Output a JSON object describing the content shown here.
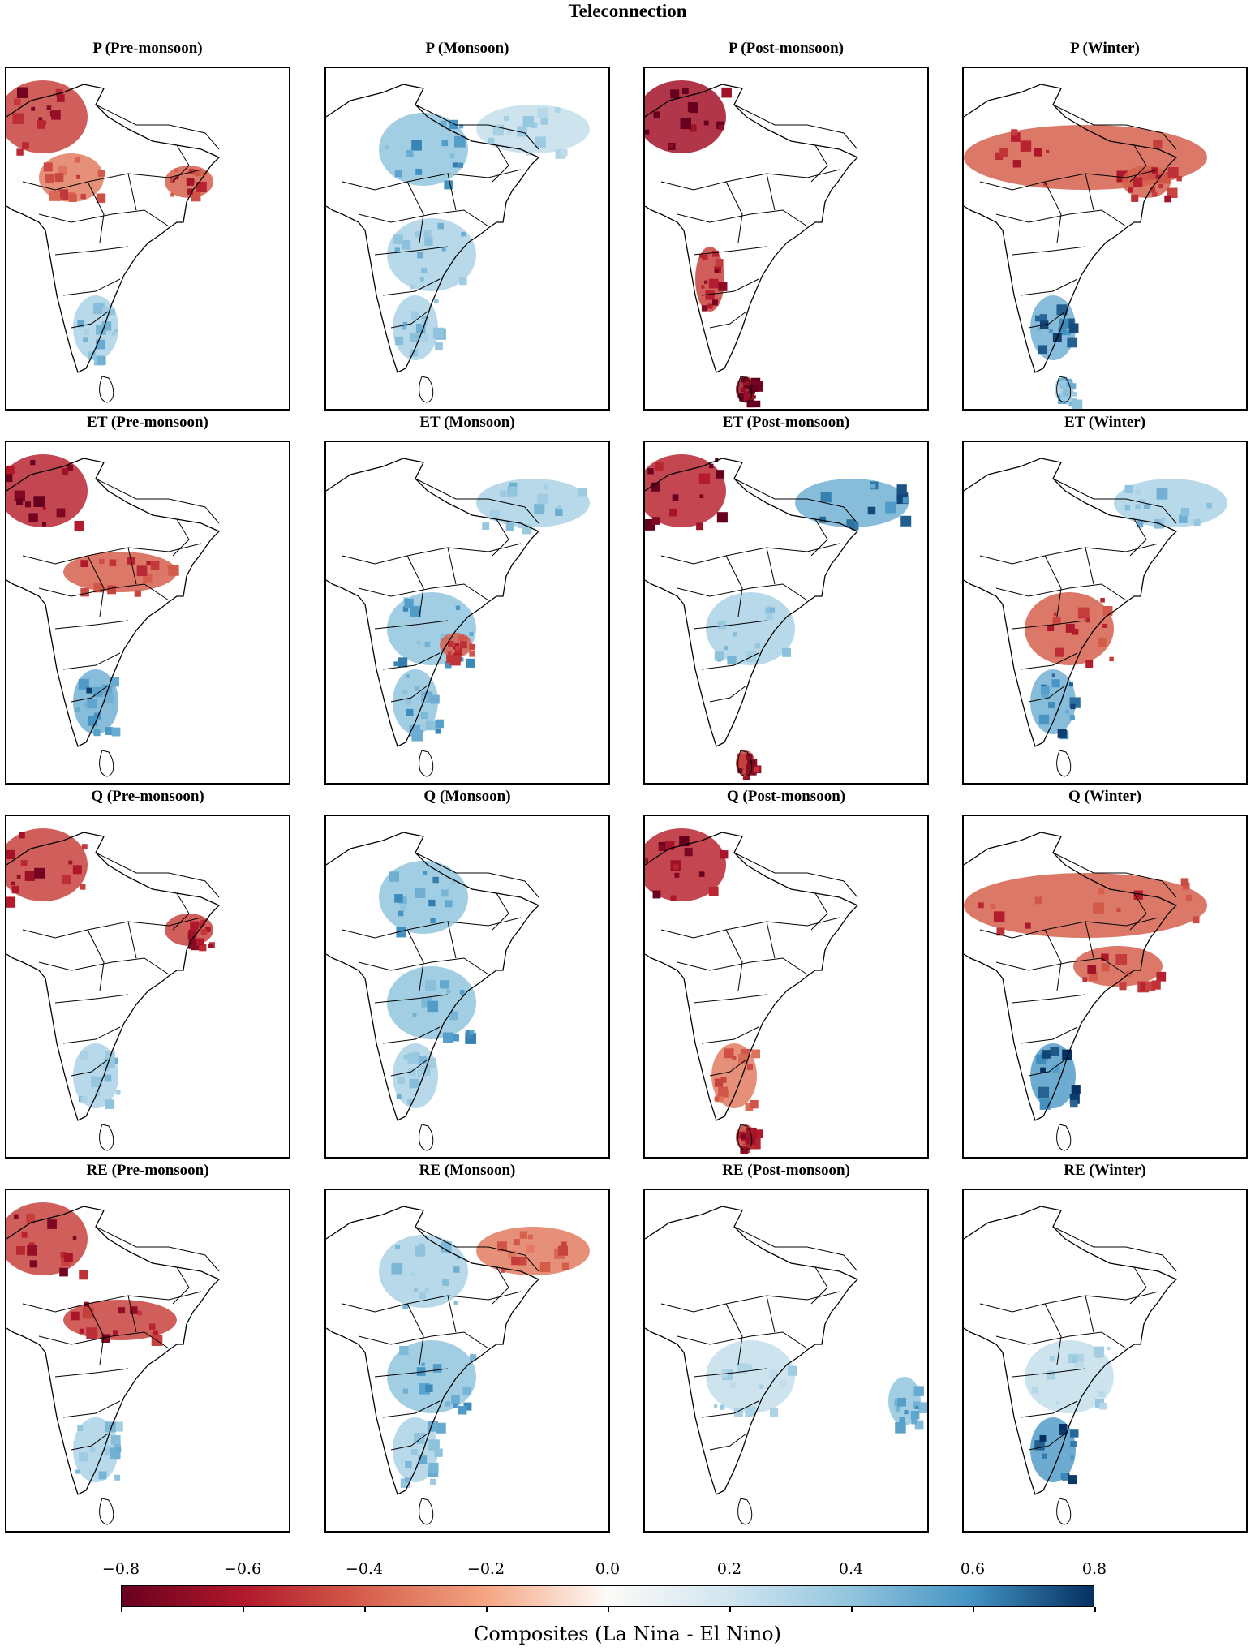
{
  "title": "Teleconnection",
  "colorbar": {
    "label": "Composites (La Nina - El Nino)",
    "ticks": [
      "−0.8",
      "−0.6",
      "−0.4",
      "−0.2",
      "0.0",
      "0.2",
      "0.4",
      "0.6",
      "0.8"
    ],
    "range": [
      -0.8,
      0.8
    ],
    "colors": [
      "#67001f",
      "#b2182b",
      "#d6604d",
      "#f4a582",
      "#fdfbf8",
      "#d1e5f0",
      "#92c5de",
      "#4393c3",
      "#053061"
    ]
  },
  "panels": [
    {
      "title": "P (Pre-monsoon)",
      "variable": "P",
      "season": "Pre-monsoon",
      "dominant": "red",
      "regions": [
        [
          "northwest",
          -0.6
        ],
        [
          "west-central",
          -0.4
        ],
        [
          "northeast",
          -0.5
        ],
        [
          "south-peninsula",
          0.4
        ]
      ]
    },
    {
      "title": "P (Monsoon)",
      "variable": "P",
      "season": "Monsoon",
      "dominant": "blue",
      "regions": [
        [
          "north-central",
          0.5
        ],
        [
          "central",
          0.4
        ],
        [
          "south-peninsula",
          0.4
        ],
        [
          "tibet",
          0.3
        ]
      ]
    },
    {
      "title": "P (Post-monsoon)",
      "variable": "P",
      "season": "Post-monsoon",
      "dominant": "red",
      "regions": [
        [
          "northwest",
          -0.8
        ],
        [
          "west-coast",
          -0.6
        ],
        [
          "sri-lanka",
          -0.8
        ]
      ]
    },
    {
      "title": "P (Winter)",
      "variable": "P",
      "season": "Winter",
      "dominant": "red",
      "regions": [
        [
          "north-band",
          -0.5
        ],
        [
          "northeast",
          -0.5
        ],
        [
          "south-peninsula",
          0.6
        ],
        [
          "sri-lanka",
          0.4
        ]
      ]
    },
    {
      "title": "ET (Pre-monsoon)",
      "variable": "ET",
      "season": "Pre-monsoon",
      "dominant": "red",
      "regions": [
        [
          "northwest",
          -0.7
        ],
        [
          "gangetic",
          -0.5
        ],
        [
          "south-peninsula",
          0.6
        ]
      ]
    },
    {
      "title": "ET (Monsoon)",
      "variable": "ET",
      "season": "Monsoon",
      "dominant": "blue",
      "regions": [
        [
          "tibet",
          0.4
        ],
        [
          "central",
          0.5
        ],
        [
          "south-peninsula",
          0.5
        ],
        [
          "east-coast",
          -0.5
        ]
      ]
    },
    {
      "title": "ET (Post-monsoon)",
      "variable": "ET",
      "season": "Post-monsoon",
      "dominant": "blue",
      "regions": [
        [
          "tibet",
          0.6
        ],
        [
          "northwest",
          -0.7
        ],
        [
          "central",
          0.4
        ],
        [
          "sri-lanka",
          -0.6
        ]
      ]
    },
    {
      "title": "ET (Winter)",
      "variable": "ET",
      "season": "Winter",
      "dominant": "red",
      "regions": [
        [
          "tibet",
          0.4
        ],
        [
          "central",
          -0.5
        ],
        [
          "south-peninsula",
          0.6
        ]
      ]
    },
    {
      "title": "Q (Pre-monsoon)",
      "variable": "Q",
      "season": "Pre-monsoon",
      "dominant": "red",
      "regions": [
        [
          "northwest",
          -0.6
        ],
        [
          "northeast",
          -0.6
        ],
        [
          "south-peninsula",
          0.4
        ]
      ]
    },
    {
      "title": "Q (Monsoon)",
      "variable": "Q",
      "season": "Monsoon",
      "dominant": "blue",
      "regions": [
        [
          "north-central",
          0.5
        ],
        [
          "central",
          0.5
        ],
        [
          "south-peninsula",
          0.4
        ]
      ]
    },
    {
      "title": "Q (Post-monsoon)",
      "variable": "Q",
      "season": "Post-monsoon",
      "dominant": "red",
      "regions": [
        [
          "northwest",
          -0.7
        ],
        [
          "south-peninsula",
          -0.4
        ],
        [
          "sri-lanka",
          -0.6
        ]
      ]
    },
    {
      "title": "Q (Winter)",
      "variable": "Q",
      "season": "Winter",
      "dominant": "red",
      "regions": [
        [
          "north-band",
          -0.5
        ],
        [
          "east-central",
          -0.5
        ],
        [
          "south-peninsula",
          0.7
        ]
      ]
    },
    {
      "title": "RE (Pre-monsoon)",
      "variable": "RE",
      "season": "Pre-monsoon",
      "dominant": "red",
      "regions": [
        [
          "northwest",
          -0.6
        ],
        [
          "gangetic",
          -0.6
        ],
        [
          "south-peninsula",
          0.4
        ]
      ]
    },
    {
      "title": "RE (Monsoon)",
      "variable": "RE",
      "season": "Monsoon",
      "dominant": "blue",
      "regions": [
        [
          "north-central",
          0.4
        ],
        [
          "central",
          0.5
        ],
        [
          "south-peninsula",
          0.4
        ],
        [
          "tibet",
          -0.4
        ]
      ]
    },
    {
      "title": "RE (Post-monsoon)",
      "variable": "RE",
      "season": "Post-monsoon",
      "dominant": "mixed",
      "regions": [
        [
          "central",
          0.3
        ],
        [
          "bay-of-bengal",
          0.5
        ]
      ]
    },
    {
      "title": "RE (Winter)",
      "variable": "RE",
      "season": "Winter",
      "dominant": "mixed",
      "regions": [
        [
          "central",
          0.3
        ],
        [
          "south-peninsula",
          0.7
        ]
      ]
    }
  ]
}
